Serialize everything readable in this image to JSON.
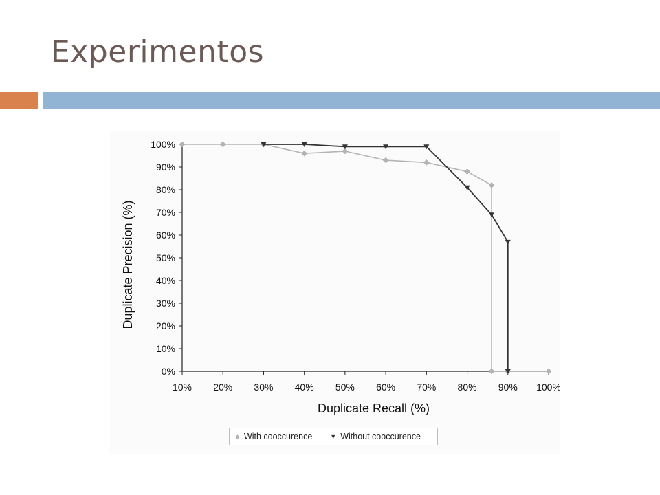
{
  "slide": {
    "title": "Experimentos"
  },
  "colors": {
    "title_text": "#6b5a55",
    "accent_orange": "#d9824e",
    "accent_blue": "#92b4d4",
    "series_with": "#b4b4b4",
    "series_without": "#333333"
  },
  "chart_data": {
    "type": "line",
    "title": "",
    "xlabel": "Duplicate Recall (%)",
    "ylabel": "Duplicate Precision (%)",
    "xlim": [
      10,
      100
    ],
    "ylim": [
      0,
      100
    ],
    "x_ticks": [
      "10%",
      "20%",
      "30%",
      "40%",
      "50%",
      "60%",
      "70%",
      "80%",
      "90%",
      "100%"
    ],
    "y_ticks": [
      "0%",
      "10%",
      "20%",
      "30%",
      "40%",
      "50%",
      "60%",
      "70%",
      "80%",
      "90%",
      "100%"
    ],
    "grid": false,
    "legend_position": "bottom",
    "series": [
      {
        "name": "With cooccurence",
        "marker": "diamond",
        "color": "#b4b4b4",
        "x": [
          10,
          20,
          30,
          40,
          50,
          60,
          70,
          80,
          86,
          86,
          90,
          100
        ],
        "y": [
          100,
          100,
          100,
          96,
          97,
          93,
          92,
          88,
          82,
          0,
          0,
          0
        ]
      },
      {
        "name": "Without cooccurence",
        "marker": "triangle-down",
        "color": "#333333",
        "x": [
          30,
          40,
          50,
          60,
          70,
          80,
          86,
          90,
          90
        ],
        "y": [
          100,
          100,
          99,
          99,
          99,
          81,
          69,
          57,
          0
        ]
      }
    ]
  }
}
